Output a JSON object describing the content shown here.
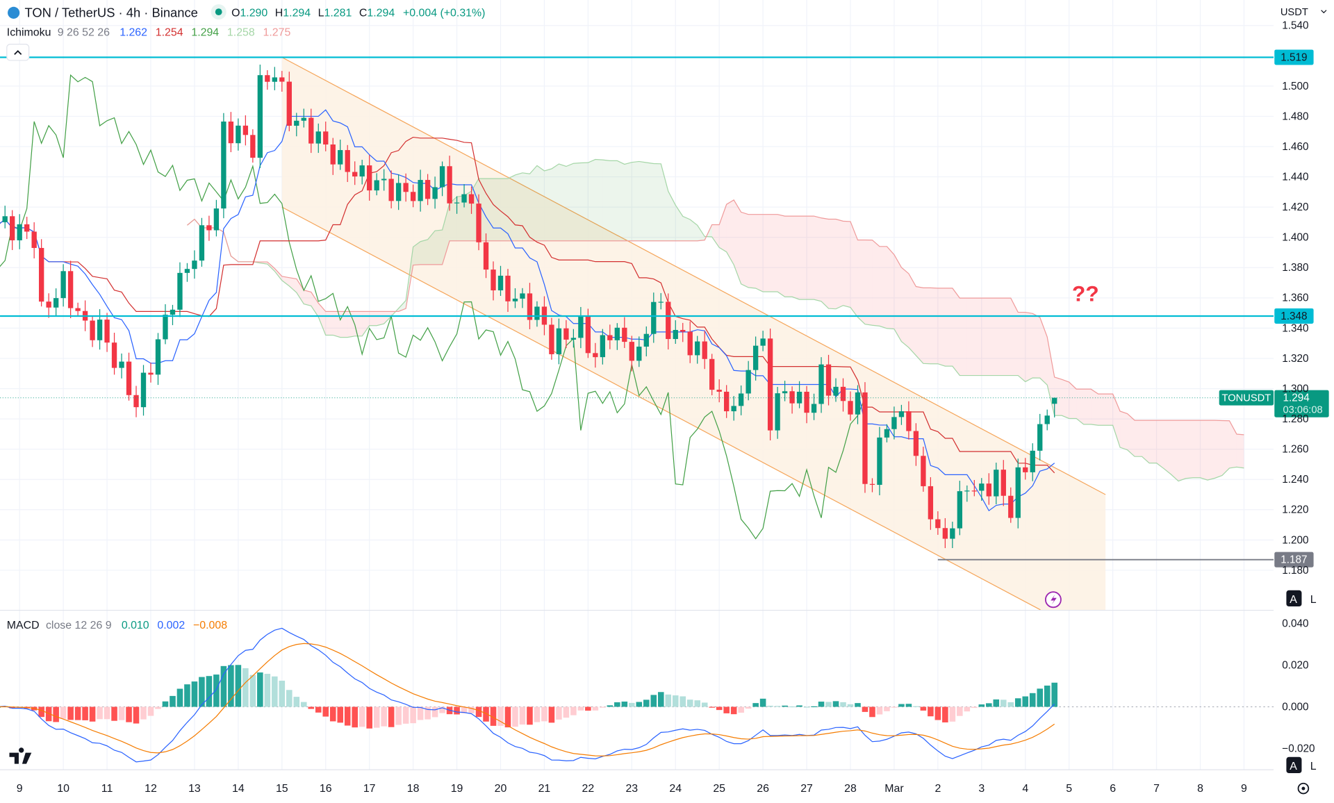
{
  "header": {
    "symbol_title": "TON / TetherUS · 4h · Binance",
    "ohlc": {
      "o_label": "O",
      "o": "1.290",
      "h_label": "H",
      "h": "1.294",
      "l_label": "L",
      "l": "1.281",
      "c_label": "C",
      "c": "1.294",
      "change": "+0.004 (+0.31%)"
    },
    "currency": "USDT",
    "collapse_icon": "chevron-up-icon"
  },
  "ichimoku": {
    "label": "Ichimoku",
    "params": "9 26 52 26",
    "values": [
      "1.262",
      "1.254",
      "1.294",
      "1.258",
      "1.275"
    ],
    "colors": [
      "#2962ff",
      "#d32f2f",
      "#43a047",
      "#a5d6a7",
      "#ef9a9a"
    ]
  },
  "macd": {
    "label": "MACD",
    "params": "close 12 26 9",
    "values": [
      "0.010",
      "0.002",
      "−0.008"
    ],
    "colors": [
      "#089981",
      "#2962ff",
      "#f57c00"
    ]
  },
  "price_axis": {
    "ticks": [
      "1.540",
      "1.500",
      "1.480",
      "1.460",
      "1.440",
      "1.420",
      "1.400",
      "1.380",
      "1.360",
      "1.340",
      "1.320",
      "1.300",
      "1.280",
      "1.260",
      "1.240",
      "1.220",
      "1.200",
      "1.180"
    ]
  },
  "macd_axis": {
    "ticks": [
      "0.040",
      "0.020",
      "0.000",
      "−0.020"
    ]
  },
  "time_axis": {
    "ticks": [
      "9",
      "10",
      "11",
      "12",
      "13",
      "14",
      "15",
      "16",
      "17",
      "18",
      "19",
      "20",
      "21",
      "22",
      "23",
      "24",
      "25",
      "26",
      "27",
      "28",
      "Mar",
      "2",
      "3",
      "4",
      "5",
      "6",
      "7",
      "8",
      "9"
    ]
  },
  "levels": [
    {
      "value": 1.519,
      "label": "1.519",
      "color": "#00bcd4"
    },
    {
      "value": 1.348,
      "label": "1.348",
      "color": "#00bcd4"
    },
    {
      "value": 1.187,
      "label": "1.187",
      "color": "#787b86"
    }
  ],
  "price_tag": {
    "symbol": "TONUSDT",
    "price": "1.294",
    "countdown": "03:06:08",
    "color": "#089981"
  },
  "annotation": "??",
  "buttons": {
    "auto": "A",
    "log": "L"
  },
  "colors": {
    "up": "#089981",
    "down": "#f23645",
    "channel_fill": "#fdf1e3",
    "channel_line": "#f5a55a"
  },
  "chart_data": {
    "type": "candlestick",
    "interval": "4h",
    "last_candle": {
      "open": 1.29,
      "high": 1.294,
      "low": 1.281,
      "close": 1.294
    },
    "close_path": [
      [
        "Feb 8 12:00",
        1.41
      ],
      [
        "Feb 9 08:00",
        1.4
      ],
      [
        "Feb 9 12:00",
        1.35
      ],
      [
        "Feb 10 00:00",
        1.37
      ],
      [
        "Feb 10 12:00",
        1.34
      ],
      [
        "Feb 10 20:00",
        1.34
      ],
      [
        "Feb 11 08:00",
        1.31
      ],
      [
        "Feb 11 16:00",
        1.29
      ],
      [
        "Feb 12 04:00",
        1.33
      ],
      [
        "Feb 12 12:00",
        1.36
      ],
      [
        "Feb 13 00:00",
        1.39
      ],
      [
        "Feb 13 12:00",
        1.42
      ],
      [
        "Feb 13 16:00",
        1.47
      ],
      [
        "Feb 14 00:00",
        1.47
      ],
      [
        "Feb 14 08:00",
        1.46
      ],
      [
        "Feb 14 12:00",
        1.5
      ],
      [
        "Feb 14 20:00",
        1.51
      ],
      [
        "Feb 15 04:00",
        1.48
      ],
      [
        "Feb 15 16:00",
        1.47
      ],
      [
        "Feb 16 08:00",
        1.45
      ],
      [
        "Feb 16 20:00",
        1.44
      ],
      [
        "Feb 17 16:00",
        1.43
      ],
      [
        "Feb 18 08:00",
        1.43
      ],
      [
        "Feb 18 16:00",
        1.44
      ],
      [
        "Feb 19 00:00",
        1.42
      ],
      [
        "Feb 19 08:00",
        1.43
      ],
      [
        "Feb 19 12:00",
        1.39
      ],
      [
        "Feb 19 20:00",
        1.37
      ],
      [
        "Feb 20 08:00",
        1.36
      ],
      [
        "Feb 20 20:00",
        1.35
      ],
      [
        "Feb 21 04:00",
        1.33
      ],
      [
        "Feb 21 20:00",
        1.34
      ],
      [
        "Feb 22 04:00",
        1.32
      ],
      [
        "Feb 22 12:00",
        1.34
      ],
      [
        "Feb 23 04:00",
        1.32
      ],
      [
        "Feb 23 12:00",
        1.36
      ],
      [
        "Feb 23 20:00",
        1.34
      ],
      [
        "Feb 24 08:00",
        1.33
      ],
      [
        "Feb 24 16:00",
        1.32
      ],
      [
        "Feb 25 00:00",
        1.29
      ],
      [
        "Feb 25 12:00",
        1.29
      ],
      [
        "Feb 25 16:00",
        1.32
      ],
      [
        "Feb 26 00:00",
        1.33
      ],
      [
        "Feb 26 04:00",
        1.28
      ],
      [
        "Feb 26 12:00",
        1.3
      ],
      [
        "Feb 26 20:00",
        1.29
      ],
      [
        "Feb 27 04:00",
        1.29
      ],
      [
        "Feb 27 08:00",
        1.31
      ],
      [
        "Feb 27 20:00",
        1.29
      ],
      [
        "Feb 28 04:00",
        1.29
      ],
      [
        "Feb 28 08:00",
        1.24
      ],
      [
        "Feb 28 12:00",
        1.24
      ],
      [
        "Feb 28 20:00",
        1.28
      ],
      [
        "Mar 1 08:00",
        1.28
      ],
      [
        "Mar 1 12:00",
        1.25
      ],
      [
        "Mar 1 20:00",
        1.22
      ],
      [
        "Mar 2 00:00",
        1.2
      ],
      [
        "Mar 2 08:00",
        1.21
      ],
      [
        "Mar 2 16:00",
        1.24
      ],
      [
        "Mar 2 20:00",
        1.23
      ],
      [
        "Mar 3 08:00",
        1.24
      ],
      [
        "Mar 3 16:00",
        1.22
      ],
      [
        "Mar 3 20:00",
        1.24
      ],
      [
        "Mar 4 04:00",
        1.26
      ],
      [
        "Mar 4 08:00",
        1.27
      ],
      [
        "Mar 4 12:00",
        1.29
      ],
      [
        "Mar 4 16:00",
        1.294
      ]
    ],
    "channel": {
      "upper": [
        [
          "Feb 15 00:00",
          1.519
        ],
        [
          "Mar 5 20:00",
          1.23
        ]
      ],
      "lower": [
        [
          "Feb 15 00:00",
          1.42
        ],
        [
          "Mar 4 16:00",
          1.14
        ]
      ]
    },
    "price_range": [
      1.17,
      1.545
    ],
    "macd_range": [
      -0.022,
      0.044
    ]
  }
}
